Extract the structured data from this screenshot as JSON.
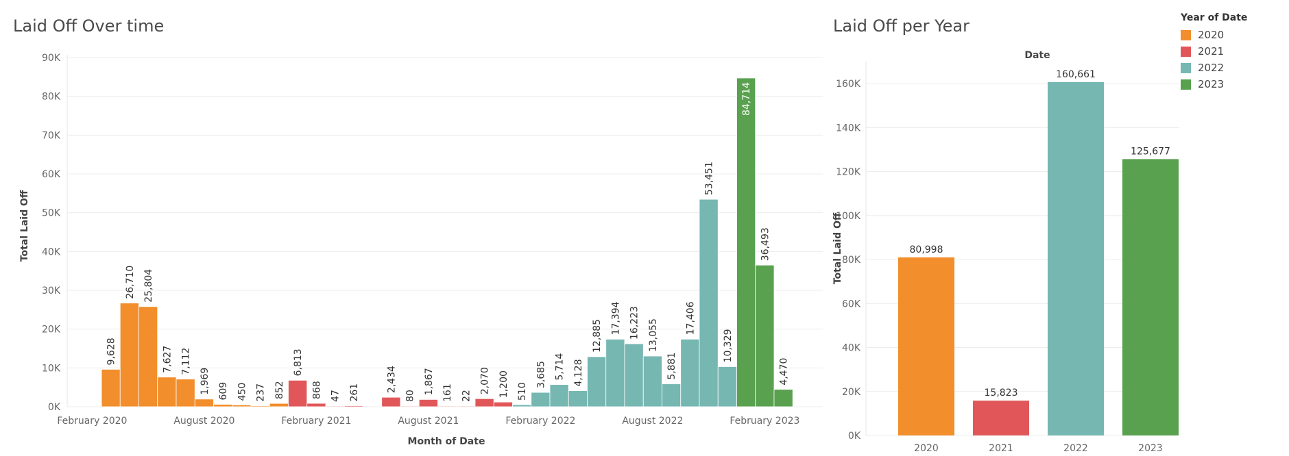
{
  "titles": {
    "left": "Laid Off Over time",
    "right": "Laid Off per Year"
  },
  "legend": {
    "title": "Year of Date",
    "items": [
      {
        "label": "2020",
        "color": "#f28e2b"
      },
      {
        "label": "2021",
        "color": "#e15759"
      },
      {
        "label": "2022",
        "color": "#76b7b2"
      },
      {
        "label": "2023",
        "color": "#59a14f"
      }
    ]
  },
  "chart_data": [
    {
      "type": "bar",
      "title": "Laid Off Over time",
      "xlabel": "Month of Date",
      "ylabel": "Total Laid Off",
      "ylim": [
        0,
        90000
      ],
      "yticks": [
        "0K",
        "10K",
        "20K",
        "30K",
        "40K",
        "50K",
        "60K",
        "70K",
        "80K",
        "90K"
      ],
      "xtick_labels": [
        {
          "label": "February 2020",
          "at": "2020-02"
        },
        {
          "label": "August 2020",
          "at": "2020-08"
        },
        {
          "label": "February 2021",
          "at": "2021-02"
        },
        {
          "label": "August 2021",
          "at": "2021-08"
        },
        {
          "label": "February 2022",
          "at": "2022-02"
        },
        {
          "label": "August 2022",
          "at": "2022-08"
        },
        {
          "label": "February 2023",
          "at": "2023-02"
        }
      ],
      "x_range": [
        "2020-01",
        "2023-04"
      ],
      "series": [
        {
          "year": "2020",
          "color": "#f28e2b",
          "points": [
            {
              "month": "2020-03",
              "value": 9628,
              "label": "9,628"
            },
            {
              "month": "2020-04",
              "value": 26710,
              "label": "26,710"
            },
            {
              "month": "2020-05",
              "value": 25804,
              "label": "25,804"
            },
            {
              "month": "2020-06",
              "value": 7627,
              "label": "7,627"
            },
            {
              "month": "2020-07",
              "value": 7112,
              "label": "7,112"
            },
            {
              "month": "2020-08",
              "value": 1969,
              "label": "1,969"
            },
            {
              "month": "2020-09",
              "value": 609,
              "label": "609"
            },
            {
              "month": "2020-10",
              "value": 450,
              "label": "450"
            },
            {
              "month": "2020-11",
              "value": 237,
              "label": "237"
            },
            {
              "month": "2020-12",
              "value": 852,
              "label": "852"
            }
          ]
        },
        {
          "year": "2021",
          "color": "#e15759",
          "points": [
            {
              "month": "2021-01",
              "value": 6813,
              "label": "6,813"
            },
            {
              "month": "2021-02",
              "value": 868,
              "label": "868"
            },
            {
              "month": "2021-03",
              "value": 47,
              "label": "47"
            },
            {
              "month": "2021-04",
              "value": 261,
              "label": "261"
            },
            {
              "month": "2021-06",
              "value": 2434,
              "label": "2,434"
            },
            {
              "month": "2021-07",
              "value": 80,
              "label": "80"
            },
            {
              "month": "2021-08",
              "value": 1867,
              "label": "1,867"
            },
            {
              "month": "2021-09",
              "value": 161,
              "label": "161"
            },
            {
              "month": "2021-10",
              "value": 22,
              "label": "22"
            },
            {
              "month": "2021-11",
              "value": 2070,
              "label": "2,070"
            },
            {
              "month": "2021-12",
              "value": 1200,
              "label": "1,200"
            }
          ]
        },
        {
          "year": "2022",
          "color": "#76b7b2",
          "points": [
            {
              "month": "2022-01",
              "value": 510,
              "label": "510"
            },
            {
              "month": "2022-02",
              "value": 3685,
              "label": "3,685"
            },
            {
              "month": "2022-03",
              "value": 5714,
              "label": "5,714"
            },
            {
              "month": "2022-04",
              "value": 4128,
              "label": "4,128"
            },
            {
              "month": "2022-05",
              "value": 12885,
              "label": "12,885"
            },
            {
              "month": "2022-06",
              "value": 17394,
              "label": "17,394"
            },
            {
              "month": "2022-07",
              "value": 16223,
              "label": "16,223"
            },
            {
              "month": "2022-08",
              "value": 13055,
              "label": "13,055"
            },
            {
              "month": "2022-09",
              "value": 5881,
              "label": "5,881"
            },
            {
              "month": "2022-10",
              "value": 17406,
              "label": "17,406"
            },
            {
              "month": "2022-11",
              "value": 53451,
              "label": "53,451"
            },
            {
              "month": "2022-12",
              "value": 10329,
              "label": "10,329"
            }
          ]
        },
        {
          "year": "2023",
          "color": "#59a14f",
          "points": [
            {
              "month": "2023-01",
              "value": 84714,
              "label": "84,714",
              "label_inside": true
            },
            {
              "month": "2023-02",
              "value": 36493,
              "label": "36,493"
            },
            {
              "month": "2023-03",
              "value": 4470,
              "label": "4,470"
            }
          ]
        }
      ]
    },
    {
      "type": "bar",
      "title": "Laid Off per Year",
      "header": "Date",
      "ylabel": "Total Laid Off",
      "ylim": [
        0,
        170000
      ],
      "yticks": [
        "0K",
        "20K",
        "40K",
        "60K",
        "80K",
        "100K",
        "120K",
        "140K",
        "160K"
      ],
      "categories": [
        "2020",
        "2021",
        "2022",
        "2023"
      ],
      "values": [
        80998,
        15823,
        160661,
        125677
      ],
      "labels": [
        "80,998",
        "15,823",
        "160,661",
        "125,677"
      ],
      "colors": [
        "#f28e2b",
        "#e15759",
        "#76b7b2",
        "#59a14f"
      ]
    }
  ]
}
